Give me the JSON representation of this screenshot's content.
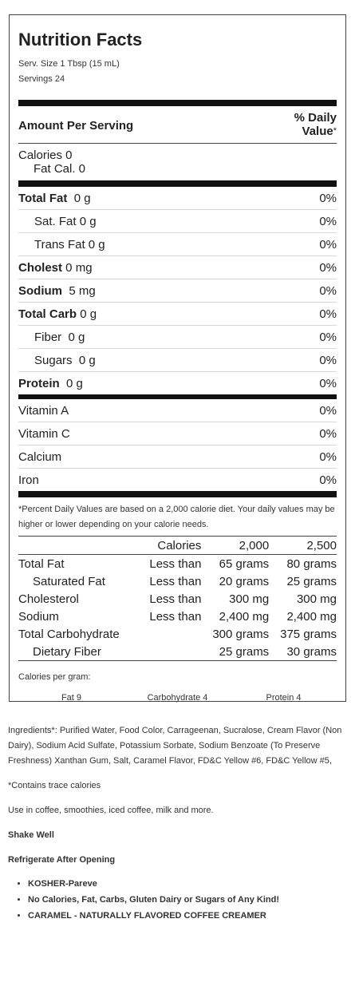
{
  "label": {
    "title": "Nutrition Facts",
    "serving_size": "Serv. Size 1 Tbsp (15 mL)",
    "servings": "Servings 24",
    "amount_per_serving": "Amount Per Serving",
    "daily_value_1": "% Daily",
    "daily_value_2": "Value",
    "daily_value_ast": "*",
    "calories": "Calories 0",
    "fat_calories": "Fat Cal. 0",
    "nutrients": [
      {
        "bold": "Total Fat",
        "rest": "  0 g",
        "dv": "0%",
        "indent": false
      },
      {
        "bold": "",
        "rest": "Sat. Fat 0 g",
        "dv": "0%",
        "indent": true
      },
      {
        "bold": "",
        "rest": "Trans Fat 0 g",
        "dv": "0%",
        "indent": true
      },
      {
        "bold": "Cholest",
        "rest": " 0 mg",
        "dv": "0%",
        "indent": false
      },
      {
        "bold": "Sodium",
        "rest": "  5 mg",
        "dv": "0%",
        "indent": false
      },
      {
        "bold": "Total Carb",
        "rest": " 0 g",
        "dv": "0%",
        "indent": false
      },
      {
        "bold": "",
        "rest": "Fiber  0 g",
        "dv": "0%",
        "indent": true
      },
      {
        "bold": "",
        "rest": "Sugars  0 g",
        "dv": "0%",
        "indent": true
      },
      {
        "bold": "Protein",
        "rest": "  0 g",
        "dv": "0%",
        "indent": false
      }
    ],
    "vitamins": [
      {
        "name": "Vitamin A",
        "dv": "0%"
      },
      {
        "name": "Vitamin C",
        "dv": "0%"
      },
      {
        "name": "Calcium",
        "dv": "0%"
      },
      {
        "name": "Iron",
        "dv": "0%"
      }
    ],
    "footnote": "*Percent Daily Values are based on a 2,000 calorie diet. Your daily values may be higher or lower depending on your calorie needs.",
    "dv_table": {
      "header": [
        "",
        "Calories",
        "2,000",
        "2,500"
      ],
      "rows": [
        [
          "Total Fat",
          "Less than",
          "65 grams",
          "80 grams"
        ],
        [
          "Saturated Fat",
          "Less than",
          "20 grams",
          "25 grams"
        ],
        [
          "Cholesterol",
          "Less than",
          "300 mg",
          "300 mg"
        ],
        [
          "Sodium",
          "Less than",
          "2,400 mg",
          "2,400 mg"
        ],
        [
          "Total Carbohydrate",
          "",
          "300 grams",
          "375 grams"
        ],
        [
          "Dietary Fiber",
          "",
          "25 grams",
          "30 grams"
        ]
      ]
    },
    "calories_per_gram": "Calories per gram:",
    "per_gram": [
      "Fat 9",
      "Carbohydrate 4",
      "Protein 4"
    ]
  },
  "below": {
    "ingredients": "Ingredients*: Purified Water, Food Color, Carrageenan, Sucralose, Cream Flavor (Non Dairy), Sodium Acid Sulfate, Potassium Sorbate, Sodium Benzoate (To Preserve Freshness) Xanthan Gum, Salt, Caramel Flavor, FD&C Yellow #6, FD&C Yellow #5,",
    "trace": "*Contains trace calories",
    "use": "Use in coffee, smoothies, iced coffee, milk and more.",
    "shake": "Shake Well",
    "refrigerate": "Refrigerate After Opening",
    "bullets": [
      "KOSHER-Pareve",
      "No Calories, Fat, Carbs, Gluten Dairy or Sugars of Any Kind!",
      "CARAMEL - NATURALLY FLAVORED COFFEE CREAMER"
    ]
  }
}
